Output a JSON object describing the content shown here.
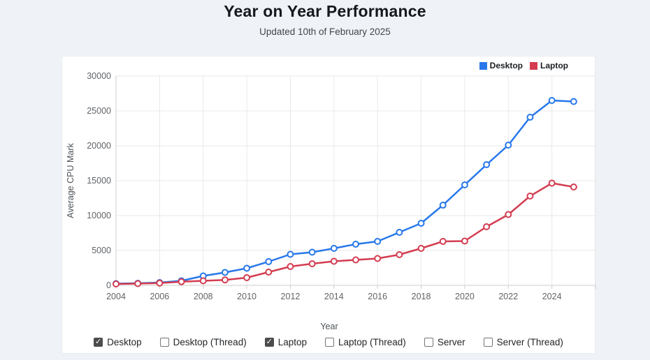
{
  "page": {
    "title": "Year on Year Performance",
    "subtitle": "Updated 10th of February 2025",
    "background_color": "#eff2f6"
  },
  "chart_data": {
    "type": "line",
    "xlabel": "Year",
    "ylabel": "Average CPU Mark",
    "x": [
      2004,
      2005,
      2006,
      2007,
      2008,
      2009,
      2010,
      2011,
      2012,
      2013,
      2014,
      2015,
      2016,
      2017,
      2018,
      2019,
      2020,
      2021,
      2022,
      2023,
      2024,
      2025
    ],
    "xlim": [
      2004,
      2026
    ],
    "ylim": [
      0,
      30000
    ],
    "x_ticks": [
      2004,
      2006,
      2008,
      2010,
      2012,
      2014,
      2016,
      2018,
      2020,
      2022,
      2024
    ],
    "y_ticks": [
      0,
      5000,
      10000,
      15000,
      20000,
      25000,
      30000
    ],
    "grid": true,
    "legend_position": "top-right",
    "grid_color": "#e8e8e8",
    "axis_color": "#cccccc",
    "series": [
      {
        "name": "Desktop",
        "color": "#2878ea",
        "values": [
          250,
          300,
          400,
          650,
          1350,
          1850,
          2450,
          3400,
          4450,
          4750,
          5300,
          5900,
          6300,
          7600,
          8900,
          11500,
          14400,
          17300,
          20100,
          24100,
          26500,
          26350
        ]
      },
      {
        "name": "Laptop",
        "color": "#d43d51",
        "values": [
          200,
          250,
          330,
          520,
          650,
          780,
          1100,
          1900,
          2700,
          3100,
          3450,
          3650,
          3850,
          4400,
          5300,
          6300,
          6350,
          8400,
          10150,
          12800,
          14650,
          14100
        ]
      }
    ]
  },
  "controls": {
    "items": [
      {
        "label": "Desktop",
        "checked": true
      },
      {
        "label": "Desktop (Thread)",
        "checked": false
      },
      {
        "label": "Laptop",
        "checked": true
      },
      {
        "label": "Laptop (Thread)",
        "checked": false
      },
      {
        "label": "Server",
        "checked": false
      },
      {
        "label": "Server (Thread)",
        "checked": false
      }
    ]
  }
}
